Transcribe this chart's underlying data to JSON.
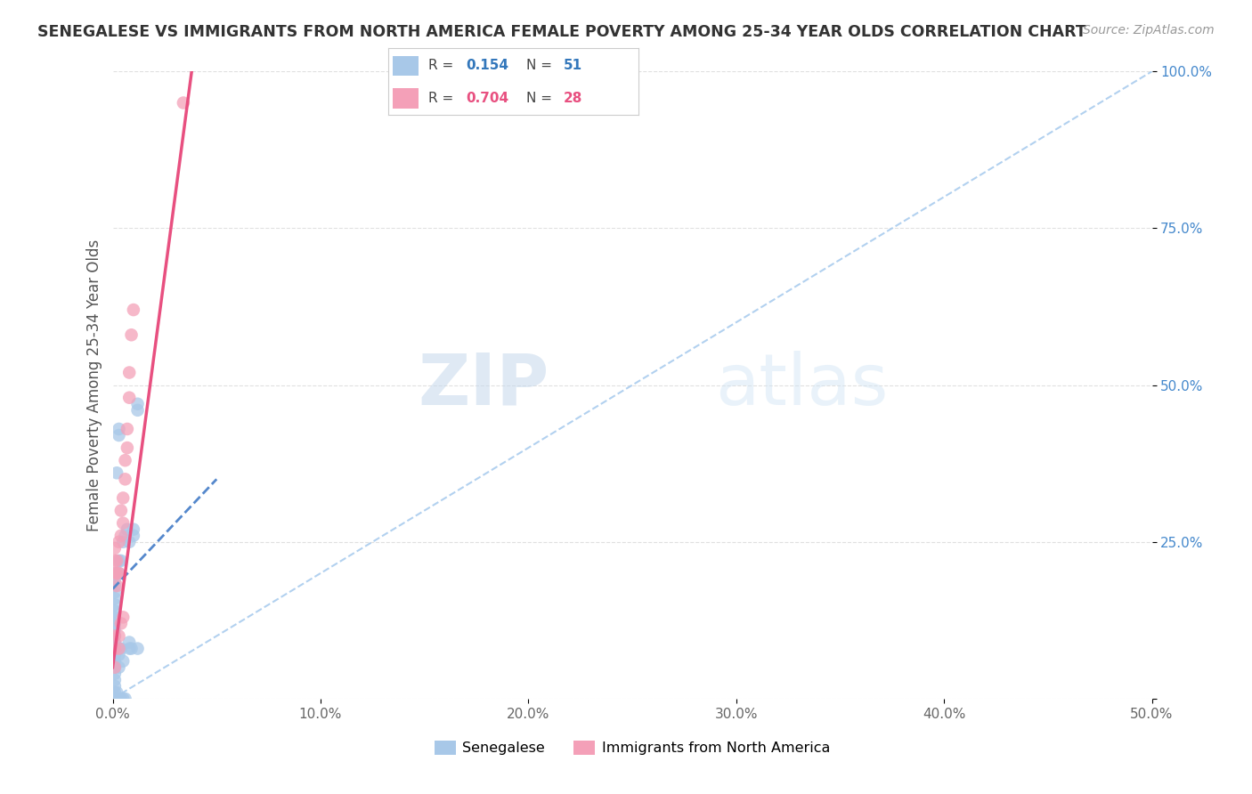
{
  "title": "SENEGALESE VS IMMIGRANTS FROM NORTH AMERICA FEMALE POVERTY AMONG 25-34 YEAR OLDS CORRELATION CHART",
  "source": "Source: ZipAtlas.com",
  "ylabel": "Female Poverty Among 25-34 Year Olds",
  "legend1_label": "Senegalese",
  "legend2_label": "Immigrants from North America",
  "R1": 0.154,
  "N1": 51,
  "R2": 0.704,
  "N2": 28,
  "color1": "#A8C8E8",
  "color2": "#F4A0B8",
  "line1_color": "#5588CC",
  "line2_color": "#E85080",
  "ref_line_color": "#AACCEE",
  "xlim": [
    0.0,
    0.5
  ],
  "ylim": [
    0.0,
    1.0
  ],
  "xticks": [
    0.0,
    0.1,
    0.2,
    0.3,
    0.4,
    0.5
  ],
  "yticks": [
    0.0,
    0.25,
    0.5,
    0.75,
    1.0
  ],
  "xtick_labels": [
    "0.0%",
    "10.0%",
    "20.0%",
    "30.0%",
    "40.0%",
    "50.0%"
  ],
  "ytick_labels": [
    "",
    "25.0%",
    "50.0%",
    "75.0%",
    "100.0%"
  ],
  "watermark_zip": "ZIP",
  "watermark_atlas": "atlas",
  "blue_scatter": [
    [
      0.001,
      0.02
    ],
    [
      0.001,
      0.03
    ],
    [
      0.001,
      0.04
    ],
    [
      0.001,
      0.05
    ],
    [
      0.001,
      0.06
    ],
    [
      0.001,
      0.07
    ],
    [
      0.001,
      0.08
    ],
    [
      0.001,
      0.09
    ],
    [
      0.001,
      0.1
    ],
    [
      0.001,
      0.11
    ],
    [
      0.001,
      0.12
    ],
    [
      0.001,
      0.13
    ],
    [
      0.001,
      0.14
    ],
    [
      0.001,
      0.15
    ],
    [
      0.001,
      0.16
    ],
    [
      0.001,
      0.17
    ],
    [
      0.001,
      0.18
    ],
    [
      0.001,
      0.19
    ],
    [
      0.001,
      0.2
    ],
    [
      0.001,
      0.0
    ],
    [
      0.003,
      0.05
    ],
    [
      0.003,
      0.07
    ],
    [
      0.003,
      0.08
    ],
    [
      0.003,
      0.2
    ],
    [
      0.003,
      0.22
    ],
    [
      0.004,
      0.08
    ],
    [
      0.004,
      0.22
    ],
    [
      0.005,
      0.06
    ],
    [
      0.005,
      0.25
    ],
    [
      0.006,
      0.26
    ],
    [
      0.007,
      0.27
    ],
    [
      0.008,
      0.25
    ],
    [
      0.009,
      0.08
    ],
    [
      0.01,
      0.26
    ],
    [
      0.01,
      0.27
    ],
    [
      0.012,
      0.46
    ],
    [
      0.012,
      0.47
    ],
    [
      0.003,
      0.42
    ],
    [
      0.003,
      0.43
    ],
    [
      0.002,
      0.36
    ],
    [
      0.008,
      0.08
    ],
    [
      0.008,
      0.09
    ],
    [
      0.001,
      0.0
    ],
    [
      0.001,
      0.01
    ],
    [
      0.002,
      0.0
    ],
    [
      0.002,
      0.01
    ],
    [
      0.003,
      0.0
    ],
    [
      0.004,
      0.0
    ],
    [
      0.005,
      0.0
    ],
    [
      0.006,
      0.0
    ],
    [
      0.012,
      0.08
    ]
  ],
  "pink_scatter": [
    [
      0.001,
      0.05
    ],
    [
      0.001,
      0.08
    ],
    [
      0.001,
      0.1
    ],
    [
      0.002,
      0.18
    ],
    [
      0.002,
      0.2
    ],
    [
      0.002,
      0.22
    ],
    [
      0.003,
      0.2
    ],
    [
      0.003,
      0.25
    ],
    [
      0.004,
      0.26
    ],
    [
      0.004,
      0.3
    ],
    [
      0.005,
      0.28
    ],
    [
      0.005,
      0.32
    ],
    [
      0.006,
      0.35
    ],
    [
      0.006,
      0.38
    ],
    [
      0.007,
      0.4
    ],
    [
      0.007,
      0.43
    ],
    [
      0.008,
      0.48
    ],
    [
      0.008,
      0.52
    ],
    [
      0.009,
      0.58
    ],
    [
      0.01,
      0.62
    ],
    [
      0.001,
      0.2
    ],
    [
      0.001,
      0.22
    ],
    [
      0.001,
      0.24
    ],
    [
      0.003,
      0.08
    ],
    [
      0.003,
      0.1
    ],
    [
      0.004,
      0.12
    ],
    [
      0.005,
      0.13
    ],
    [
      0.034,
      0.95
    ]
  ],
  "blue_reg_slope": 3.5,
  "blue_reg_intercept": 0.175,
  "pink_reg_slope": 25.0,
  "pink_reg_intercept": 0.05
}
